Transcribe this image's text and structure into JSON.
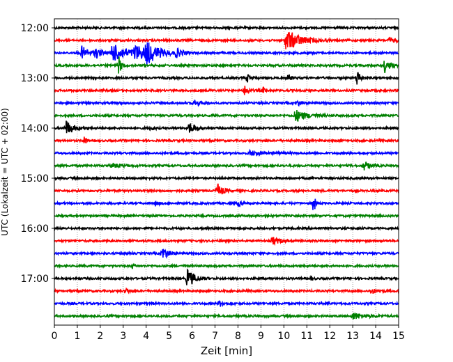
{
  "chart_data": {
    "type": "line",
    "title": "",
    "xlabel": "Zeit  [min]",
    "ylabel": "UTC (Lokalzeit = UTC + 02:00)",
    "xlim": [
      0,
      15
    ],
    "x_ticks": [
      "0",
      "1",
      "2",
      "3",
      "4",
      "5",
      "6",
      "7",
      "8",
      "9",
      "10",
      "11",
      "12",
      "13",
      "14",
      "15"
    ],
    "y_ticks": [
      {
        "label": "12:00",
        "trace": 0
      },
      {
        "label": "13:00",
        "trace": 4
      },
      {
        "label": "14:00",
        "trace": 8
      },
      {
        "label": "15:00",
        "trace": 12
      },
      {
        "label": "16:00",
        "trace": 16
      },
      {
        "label": "17:00",
        "trace": 20
      }
    ],
    "grid": "vertical dotted",
    "colors": [
      "#000000",
      "#ff0000",
      "#0000ff",
      "#008000"
    ],
    "trace_interval_min": 15,
    "traces": [
      {
        "start": "12:00",
        "color": "#000000",
        "events": []
      },
      {
        "start": "12:15",
        "color": "#ff0000",
        "events": [
          {
            "t": 10.1,
            "amp": 1.0,
            "dur": 0.8
          },
          {
            "t": 14.6,
            "amp": 0.25,
            "dur": 0.3
          }
        ]
      },
      {
        "start": "12:30",
        "color": "#0000ff",
        "events": [
          {
            "t": 1.2,
            "amp": 0.6,
            "dur": 0.4
          },
          {
            "t": 1.8,
            "amp": 0.45,
            "dur": 0.3
          },
          {
            "t": 2.5,
            "amp": 0.8,
            "dur": 1.0
          },
          {
            "t": 3.5,
            "amp": 0.55,
            "dur": 0.8
          },
          {
            "t": 4.0,
            "amp": 0.8,
            "dur": 0.7
          },
          {
            "t": 5.3,
            "amp": 0.35,
            "dur": 0.4
          }
        ]
      },
      {
        "start": "12:45",
        "color": "#008000",
        "events": [
          {
            "t": 2.8,
            "amp": 0.9,
            "dur": 0.15
          },
          {
            "t": 14.4,
            "amp": 0.6,
            "dur": 0.3
          }
        ]
      },
      {
        "start": "13:00",
        "color": "#000000",
        "events": [
          {
            "t": 8.4,
            "amp": 0.35,
            "dur": 0.2
          },
          {
            "t": 10.2,
            "amp": 0.3,
            "dur": 0.2
          },
          {
            "t": 13.2,
            "amp": 0.9,
            "dur": 0.15
          }
        ]
      },
      {
        "start": "13:15",
        "color": "#ff0000",
        "events": [
          {
            "t": 8.3,
            "amp": 0.45,
            "dur": 0.2
          },
          {
            "t": 9.1,
            "amp": 0.25,
            "dur": 0.1
          }
        ]
      },
      {
        "start": "13:30",
        "color": "#0000ff",
        "events": [
          {
            "t": 6.1,
            "amp": 0.25,
            "dur": 0.3
          },
          {
            "t": 10.6,
            "amp": 0.2,
            "dur": 0.3
          }
        ]
      },
      {
        "start": "13:45",
        "color": "#008000",
        "events": [
          {
            "t": 10.5,
            "amp": 0.55,
            "dur": 0.6
          }
        ]
      },
      {
        "start": "14:00",
        "color": "#000000",
        "events": [
          {
            "t": 0.5,
            "amp": 0.7,
            "dur": 0.4
          },
          {
            "t": 4.2,
            "amp": 0.2,
            "dur": 0.2
          },
          {
            "t": 5.9,
            "amp": 0.5,
            "dur": 0.3
          }
        ]
      },
      {
        "start": "14:15",
        "color": "#ff0000",
        "events": [
          {
            "t": 1.3,
            "amp": 0.4,
            "dur": 0.1
          }
        ]
      },
      {
        "start": "14:30",
        "color": "#0000ff",
        "events": [
          {
            "t": 8.5,
            "amp": 0.2,
            "dur": 0.8
          }
        ]
      },
      {
        "start": "14:45",
        "color": "#008000",
        "events": [
          {
            "t": 2.5,
            "amp": 0.2,
            "dur": 0.6
          },
          {
            "t": 13.5,
            "amp": 0.4,
            "dur": 0.3
          }
        ]
      },
      {
        "start": "15:00",
        "color": "#000000",
        "events": []
      },
      {
        "start": "15:15",
        "color": "#ff0000",
        "events": [
          {
            "t": 7.1,
            "amp": 0.65,
            "dur": 0.3
          }
        ]
      },
      {
        "start": "15:30",
        "color": "#0000ff",
        "events": [
          {
            "t": 4.4,
            "amp": 0.2,
            "dur": 0.2
          },
          {
            "t": 8.0,
            "amp": 0.25,
            "dur": 0.2
          },
          {
            "t": 11.3,
            "amp": 0.9,
            "dur": 0.1
          }
        ]
      },
      {
        "start": "15:45",
        "color": "#008000",
        "events": []
      },
      {
        "start": "16:00",
        "color": "#000000",
        "events": []
      },
      {
        "start": "16:15",
        "color": "#ff0000",
        "events": [
          {
            "t": 9.5,
            "amp": 0.35,
            "dur": 0.4
          }
        ]
      },
      {
        "start": "16:30",
        "color": "#0000ff",
        "events": [
          {
            "t": 4.7,
            "amp": 0.65,
            "dur": 0.3
          }
        ]
      },
      {
        "start": "16:45",
        "color": "#008000",
        "events": [
          {
            "t": 3.4,
            "amp": 0.2,
            "dur": 0.1
          }
        ]
      },
      {
        "start": "17:00",
        "color": "#000000",
        "events": [
          {
            "t": 5.8,
            "amp": 0.9,
            "dur": 0.4
          },
          {
            "t": 11.2,
            "amp": 0.2,
            "dur": 0.1
          }
        ]
      },
      {
        "start": "17:15",
        "color": "#ff0000",
        "events": [
          {
            "t": 3.1,
            "amp": 0.2,
            "dur": 0.2
          },
          {
            "t": 13.8,
            "amp": 0.2,
            "dur": 0.4
          }
        ]
      },
      {
        "start": "17:30",
        "color": "#0000ff",
        "events": [
          {
            "t": 7.2,
            "amp": 0.25,
            "dur": 0.3
          }
        ]
      },
      {
        "start": "17:45",
        "color": "#008000",
        "events": [
          {
            "t": 13.0,
            "amp": 0.3,
            "dur": 0.7
          }
        ]
      }
    ]
  }
}
